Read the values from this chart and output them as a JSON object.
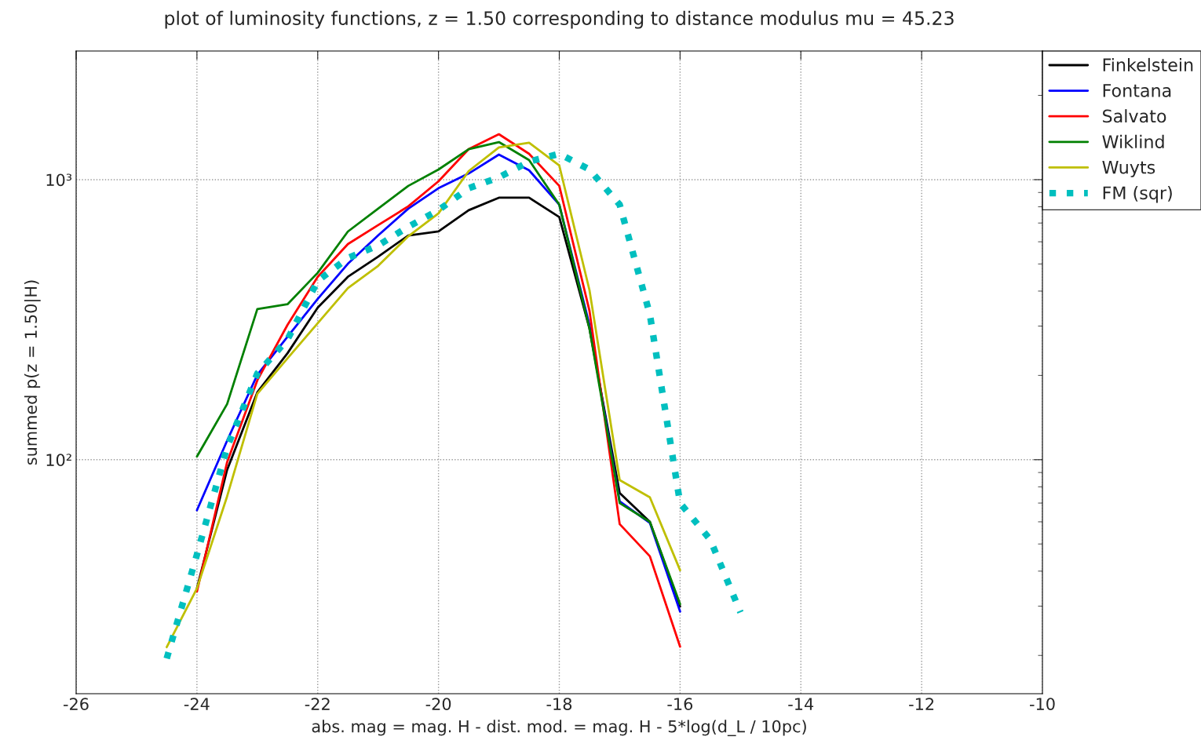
{
  "chart_data": {
    "type": "line",
    "title": "plot of luminosity functions, z = 1.50 corresponding to distance modulus mu = 45.23",
    "xlabel": "abs. mag = mag. H - dist. mod. = mag. H - 5*log(d_L / 10pc)",
    "ylabel": "summed p(z = 1.50|H)",
    "x": [
      -24.5,
      -24,
      -23.5,
      -23,
      -22.5,
      -22,
      -21.5,
      -21,
      -20.5,
      -20,
      -19.5,
      -19,
      -18.5,
      -18,
      -17.5,
      -17,
      -16.5,
      -16
    ],
    "series": [
      {
        "name": "Finkelstein",
        "color": "#000000",
        "values": [
          null,
          34.7,
          92,
          174,
          240,
          349,
          450,
          531,
          632,
          653,
          778,
          862,
          862,
          735,
          294,
          76,
          60,
          29.9
        ]
      },
      {
        "name": "Fontana",
        "color": "#0000ff",
        "values": [
          null,
          66,
          117,
          201,
          275,
          375,
          501,
          632,
          788,
          932,
          1052,
          1229,
          1080,
          814,
          303,
          71,
          59.5,
          28.7
        ]
      },
      {
        "name": "Salvato",
        "color": "#ff0000",
        "values": [
          null,
          33.8,
          98,
          192,
          303,
          450,
          589,
          688,
          803,
          987,
          1285,
          1453,
          1237,
          950,
          340,
          58.9,
          45.2,
          21.5
        ]
      },
      {
        "name": "Wiklind",
        "color": "#008000",
        "values": [
          null,
          102.6,
          158,
          345,
          359,
          465,
          653,
          788,
          950,
          1087,
          1285,
          1362,
          1175,
          814,
          294,
          70,
          60,
          30.5
        ]
      },
      {
        "name": "Wuyts",
        "color": "#bfbf00",
        "values": [
          21.4,
          34.7,
          74,
          172,
          230,
          307,
          410,
          492,
          628,
          758,
          1073,
          1303,
          1354,
          1123,
          403,
          84.6,
          73.4,
          40.3
        ]
      },
      {
        "name": "FM (sqr)",
        "color": "#00bfbf",
        "line_style": "dotted",
        "x": [
          -24.5,
          -24,
          -23.5,
          -23,
          -22.5,
          -22,
          -21.5,
          -21,
          -20.5,
          -20,
          -19.5,
          -19,
          -18.5,
          -18,
          -17.5,
          -17,
          -16.5,
          -16,
          -15.5,
          -15
        ],
        "values": [
          19.5,
          45.8,
          111,
          203,
          269,
          435,
          525,
          582,
          679,
          778,
          932,
          1019,
          1160,
          1237,
          1087,
          814,
          330,
          70,
          51.8,
          28.5
        ]
      }
    ],
    "log": "y",
    "xlim": [
      -26,
      -10
    ],
    "xticks": [
      -26,
      -24,
      -22,
      -20,
      -18,
      -16,
      -14,
      -12,
      -10
    ],
    "ylim": [
      14.6,
      2880
    ],
    "yticks": [
      {
        "value": 100,
        "label": "10²"
      },
      {
        "value": 1000,
        "label": "10³"
      }
    ],
    "grid": true,
    "legend": "top right",
    "line_style": "solid",
    "marker": "none"
  }
}
